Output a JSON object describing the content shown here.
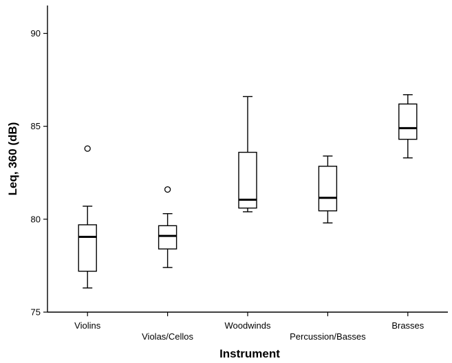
{
  "chart_data": {
    "type": "box",
    "xlabel": "Instrument",
    "ylabel": "Leq, 360 (dB)",
    "ylim": [
      75,
      91.5
    ],
    "yticks": [
      75,
      80,
      85,
      90
    ],
    "grid": false,
    "categories": [
      "Violins",
      "Violas/Cellos",
      "Woodwinds",
      "Percussion/Basses",
      "Brasses"
    ],
    "boxes": [
      {
        "category": "Violins",
        "whisker_low": 76.3,
        "q1": 77.2,
        "median": 79.05,
        "q3": 79.7,
        "whisker_high": 80.7,
        "outliers": [
          83.8
        ]
      },
      {
        "category": "Violas/Cellos",
        "whisker_low": 77.4,
        "q1": 78.4,
        "median": 79.1,
        "q3": 79.65,
        "whisker_high": 80.3,
        "outliers": [
          81.6
        ]
      },
      {
        "category": "Woodwinds",
        "whisker_low": 80.4,
        "q1": 80.6,
        "median": 81.05,
        "q3": 83.6,
        "whisker_high": 86.6,
        "outliers": []
      },
      {
        "category": "Percussion/Basses",
        "whisker_low": 79.8,
        "q1": 80.45,
        "median": 81.15,
        "q3": 82.85,
        "whisker_high": 83.4,
        "outliers": []
      },
      {
        "category": "Brasses",
        "whisker_low": 83.3,
        "q1": 84.3,
        "median": 84.9,
        "q3": 86.2,
        "whisker_high": 86.7,
        "outliers": []
      }
    ]
  }
}
